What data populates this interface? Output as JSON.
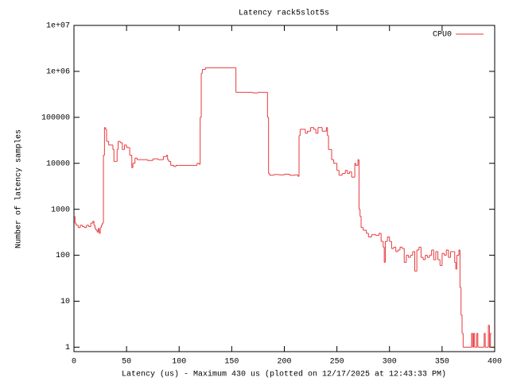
{
  "chart_data": {
    "type": "line",
    "step": true,
    "title": "Latency rack5slot5s",
    "xlabel": "Latency (us) - Maximum 430 us (plotted on 12/17/2025 at 12:43:33 PM)",
    "ylabel": "Number of latency samples",
    "xlim": [
      0,
      400
    ],
    "xticks": [
      0,
      50,
      100,
      150,
      200,
      250,
      300,
      350,
      400
    ],
    "ylim": [
      0.8,
      10000000
    ],
    "log_y": true,
    "yticks": [
      1,
      10,
      100,
      1000,
      10000,
      100000,
      {
        "value": 1000000,
        "label": "1e+06"
      },
      {
        "value": 10000000,
        "label": "1e+07"
      }
    ],
    "legend": "top right",
    "x": [
      0,
      1,
      2,
      4,
      6,
      8,
      10,
      12,
      14,
      16,
      18,
      19,
      20,
      21,
      22,
      23,
      24,
      25,
      26,
      27,
      28,
      29,
      30,
      31,
      33,
      35,
      37,
      38,
      40,
      41,
      42,
      44,
      46,
      48,
      50,
      53,
      55,
      56,
      58,
      60,
      65,
      70,
      75,
      80,
      85,
      88,
      89,
      90,
      92,
      95,
      97,
      100,
      105,
      110,
      117,
      119,
      120,
      121,
      122,
      125,
      130,
      140,
      150,
      154,
      160,
      170,
      175,
      182,
      184,
      185,
      186,
      190,
      195,
      200,
      205,
      210,
      213,
      214,
      215,
      220,
      222,
      225,
      228,
      230,
      232,
      236,
      240,
      241,
      242,
      245,
      247,
      250,
      252,
      255,
      258,
      260,
      262,
      264,
      267,
      268,
      270,
      271,
      272,
      273,
      275,
      278,
      280,
      283,
      287,
      290,
      292,
      294,
      295,
      296,
      298,
      300,
      302,
      304,
      306,
      308,
      310,
      312,
      314,
      316,
      318,
      320,
      322,
      324,
      326,
      328,
      330,
      332,
      334,
      336,
      338,
      340,
      342,
      344,
      346,
      348,
      350,
      352,
      354,
      356,
      358,
      360,
      362,
      363,
      364,
      366,
      367,
      368,
      369,
      370,
      375,
      378,
      379,
      380,
      381,
      383,
      384,
      390,
      391,
      393,
      394,
      395,
      396
    ],
    "series": [
      {
        "name": "CPU0",
        "color": "#e8383b",
        "values": [
          700,
          500,
          450,
          400,
          450,
          420,
          400,
          450,
          420,
          500,
          550,
          450,
          380,
          350,
          320,
          380,
          300,
          400,
          450,
          500,
          15000,
          60000,
          55000,
          30000,
          25000,
          25000,
          20000,
          11000,
          11000,
          20000,
          30000,
          28000,
          20000,
          25000,
          22000,
          15000,
          8000,
          10000,
          13000,
          12000,
          12000,
          11500,
          12500,
          12000,
          14000,
          15000,
          12000,
          11000,
          9000,
          8500,
          9000,
          9000,
          9000,
          9000,
          10000,
          9500,
          100000,
          900000,
          1100000,
          1200000,
          1200000,
          1200000,
          1200000,
          350000,
          350000,
          340000,
          350000,
          350000,
          100000,
          6000,
          5500,
          5700,
          5600,
          5800,
          5500,
          5600,
          5200,
          40000,
          55000,
          45000,
          50000,
          60000,
          55000,
          45000,
          60000,
          50000,
          60000,
          40000,
          20000,
          12000,
          10000,
          7000,
          5500,
          6000,
          7000,
          6000,
          6500,
          5000,
          10000,
          9000,
          12000,
          1000,
          700,
          400,
          350,
          300,
          250,
          280,
          270,
          300,
          200,
          150,
          70,
          200,
          250,
          200,
          140,
          150,
          120,
          130,
          150,
          140,
          70,
          100,
          90,
          100,
          120,
          45,
          130,
          150,
          90,
          80,
          100,
          90,
          100,
          130,
          80,
          120,
          80,
          60,
          110,
          100,
          130,
          90,
          120,
          120,
          70,
          50,
          100,
          130,
          20,
          5,
          2,
          1,
          1,
          2,
          1,
          2,
          1,
          2,
          1,
          2,
          1,
          1,
          3,
          1,
          2
        ]
      }
    ]
  }
}
